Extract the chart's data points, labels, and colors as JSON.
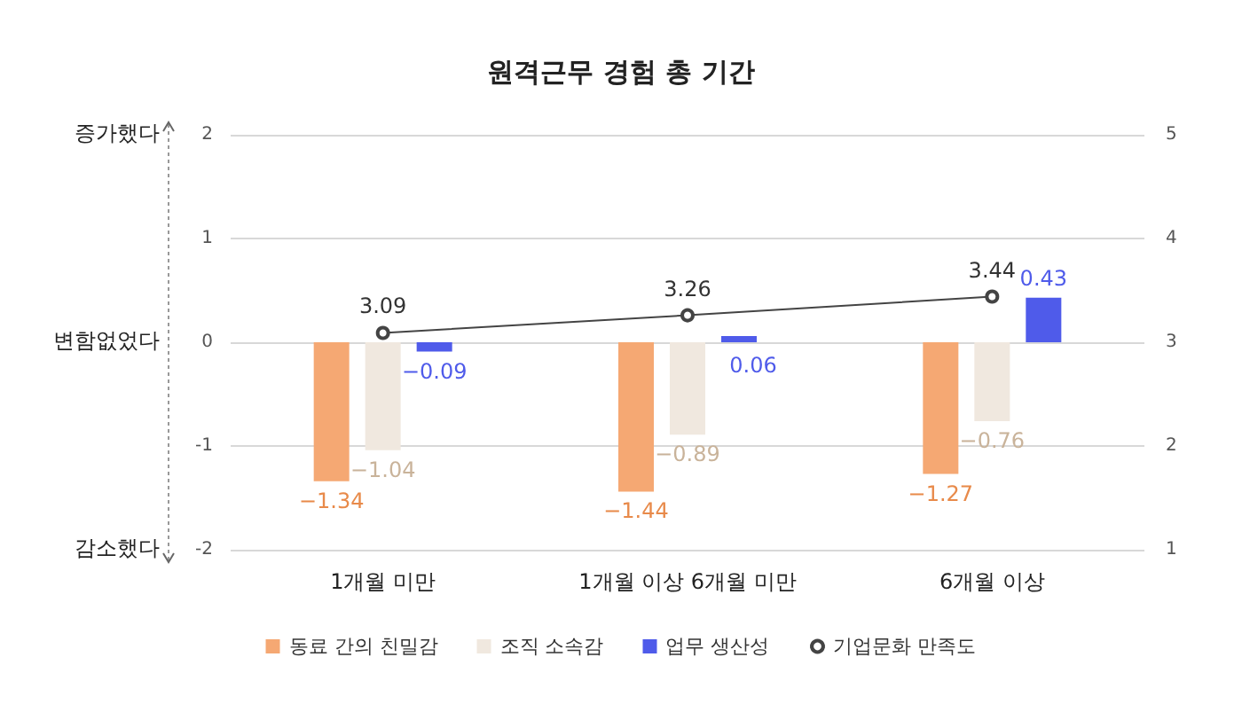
{
  "chart_data": {
    "type": "bar",
    "title": "원격근무 경험 총 기간",
    "categories": [
      "1개월 미만",
      "1개월 이상 6개월 미만",
      "6개월 이상"
    ],
    "series": [
      {
        "name": "동료 간의 친밀감",
        "color": "#f5a873",
        "values": [
          -1.34,
          -1.44,
          -1.27
        ]
      },
      {
        "name": "조직 소속감",
        "color": "#f0e8df",
        "values": [
          -1.04,
          -0.89,
          -0.76
        ]
      },
      {
        "name": "업무 생산성",
        "color": "#4f5bea",
        "values": [
          -0.09,
          0.06,
          0.43
        ]
      },
      {
        "name": "기업문화 만족도",
        "type": "line",
        "axis": "y2",
        "color": "#444444",
        "values": [
          3.09,
          3.26,
          3.44
        ],
        "marker": "circle"
      }
    ],
    "ylim": [
      -2,
      2
    ],
    "yticks": [
      -2,
      -1,
      0,
      1,
      2
    ],
    "y2lim": [
      1,
      5
    ],
    "y2ticks": [
      1,
      2,
      3,
      4,
      5
    ],
    "annotations": [
      "증가했다",
      "변함없었다",
      "감소했다"
    ],
    "grid": "y",
    "legend": "bottom",
    "data_labels": true
  }
}
